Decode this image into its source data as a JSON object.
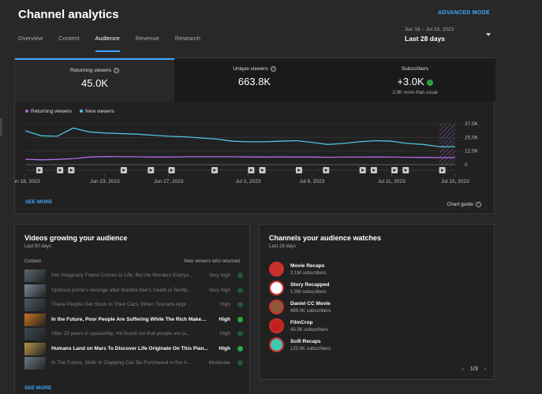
{
  "header": {
    "title": "Channel analytics",
    "advanced_mode": "ADVANCED MODE",
    "tabs": [
      {
        "label": "Overview"
      },
      {
        "label": "Content"
      },
      {
        "label": "Audience"
      },
      {
        "label": "Revenue"
      },
      {
        "label": "Research"
      }
    ],
    "active_tab": "Audience",
    "date_range_sub": "Jun 18 – Jul 15, 2023",
    "date_range_main": "Last 28 days"
  },
  "metrics": [
    {
      "label": "Returning viewers",
      "value": "45.0K"
    },
    {
      "label": "Unique viewers",
      "value": "663.8K"
    },
    {
      "label": "Subscribers",
      "value": "+3.0K",
      "note": "2.9K more than usual"
    }
  ],
  "chart": {
    "legend": [
      {
        "name": "Returning viewers",
        "color": "#b26be8"
      },
      {
        "name": "New viewers",
        "color": "#4fc3e0"
      }
    ],
    "see_more": "SEE MORE",
    "chart_guide": "Chart guide"
  },
  "chart_data": {
    "type": "line",
    "x": [
      "Jun 18, 2023",
      "Jun 19",
      "Jun 20",
      "Jun 21",
      "Jun 22",
      "Jun 23, 2023",
      "Jun 24",
      "Jun 25",
      "Jun 26",
      "Jun 27, 2023",
      "Jun 28",
      "Jun 29",
      "Jun 30",
      "Jul 1",
      "Jul 2, 2023",
      "Jul 3",
      "Jul 4",
      "Jul 5",
      "Jul 6, 2023",
      "Jul 7",
      "Jul 8",
      "Jul 9",
      "Jul 10",
      "Jul 11, 2023",
      "Jul 12",
      "Jul 13",
      "Jul 14",
      "Jul 15, 2023"
    ],
    "series": [
      {
        "name": "New viewers",
        "values": [
          31000,
          26500,
          26000,
          33500,
          30000,
          29000,
          28500,
          28000,
          27000,
          26000,
          25500,
          24500,
          23500,
          21500,
          21000,
          21000,
          21500,
          22000,
          20500,
          18500,
          19500,
          21000,
          22000,
          21500,
          19500,
          18500,
          16500,
          16500
        ]
      },
      {
        "name": "Returning viewers",
        "values": [
          5000,
          4500,
          4800,
          5500,
          7000,
          7500,
          7300,
          7200,
          7000,
          7000,
          7200,
          7300,
          7300,
          7200,
          7100,
          7000,
          7100,
          7000,
          7000,
          6800,
          6900,
          6900,
          7000,
          6900,
          6800,
          6700,
          6500,
          6500
        ]
      }
    ],
    "x_ticks": [
      "Jun 18, 2023",
      "Jun 23, 2023",
      "Jun 27, 2023",
      "Jul 2, 2023",
      "Jul 6, 2023",
      "Jul 11, 2023",
      "Jul 15, 2023"
    ],
    "y_ticks": [
      "37.5K",
      "25.0K",
      "12.5K",
      "0"
    ],
    "ylim": [
      0,
      37500
    ]
  },
  "videos_card": {
    "title": "Videos growing your audience",
    "subtitle": "Last 90 days",
    "col_content": "Content",
    "col_viewers": "New viewers who returned",
    "see_more": "SEE MORE",
    "rows": [
      {
        "title": "Her Imaginary Friend Comes to Life, But He Murders Everyo...",
        "level": "Very high",
        "dim": true,
        "thumb": "#5a6a72"
      },
      {
        "title": "Optimus prime's revenge after bumble bee's Death is Terrify...",
        "level": "Very high",
        "dim": true,
        "thumb": "#7a8a9a"
      },
      {
        "title": "These People Get Stuck In Their Cars, When Tsunami Appr...",
        "level": "High",
        "dim": true,
        "thumb": "#4a5a66"
      },
      {
        "title": "In the Future, Poor People Are Suffering While The Rich Makes ...",
        "level": "High",
        "dim": false,
        "thumb": "#c8741e"
      },
      {
        "title": "After 33 years in spaceship, He found out that people are ju...",
        "level": "High",
        "dim": true,
        "thumb": "#3a4a52"
      },
      {
        "title": "Humans Land on Mars To Discover Life Originate On This Plan...",
        "level": "High",
        "dim": false,
        "thumb": "#b8924a"
      },
      {
        "title": "In The Future, Skills in Clapping Can Be Purchased in the A...",
        "level": "Moderate",
        "dim": true,
        "thumb": "#6a7a82"
      }
    ]
  },
  "channels_card": {
    "title": "Channels your audience watches",
    "subtitle": "Last 28 days",
    "pager": "1/3",
    "rows": [
      {
        "name": "Movie Recaps",
        "subs": "2.1M subscribers",
        "avatar": "#c9302c"
      },
      {
        "name": "Story Recapped",
        "subs": "1.5M subscribers",
        "avatar": "#ffffff"
      },
      {
        "name": "Daniel CC Movie",
        "subs": "489.0K subscribers",
        "avatar": "#8a5a3a"
      },
      {
        "name": "FilmCrop",
        "subs": "43.5K subscribers",
        "avatar": "#c41e1e"
      },
      {
        "name": "Scifi Recaps",
        "subs": "123.0K subscribers",
        "avatar": "#3ec8b0"
      }
    ]
  }
}
